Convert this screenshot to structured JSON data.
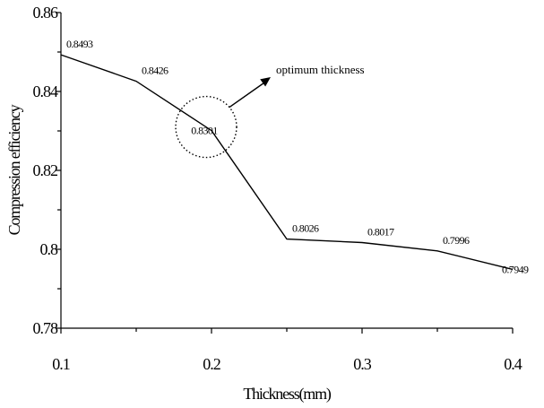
{
  "chart_data": {
    "type": "line",
    "xlabel": "Thickness(mm)",
    "ylabel": "Compression efficiency",
    "xlim": [
      0.1,
      0.4
    ],
    "ylim": [
      0.78,
      0.86
    ],
    "x_ticks": [
      "0.1",
      "0.2",
      "0.3",
      "0.4"
    ],
    "y_ticks": [
      "0.78",
      "0.8",
      "0.82",
      "0.84",
      "0.86"
    ],
    "grid": false,
    "legend": "none",
    "series": [
      {
        "x": [
          0.1,
          0.15,
          0.2,
          0.25,
          0.3,
          0.35,
          0.4
        ],
        "y": [
          0.8493,
          0.8426,
          0.8301,
          0.8026,
          0.8017,
          0.7996,
          0.7949
        ],
        "labels": [
          "0.8493",
          "0.8426",
          "0.8301",
          "0.8026",
          "0.8017",
          "0.7996",
          "0.7949"
        ],
        "color": "#000000"
      }
    ],
    "annotations": [
      {
        "text": "optimum thickness",
        "x": 0.2,
        "y": 0.8301
      }
    ]
  }
}
